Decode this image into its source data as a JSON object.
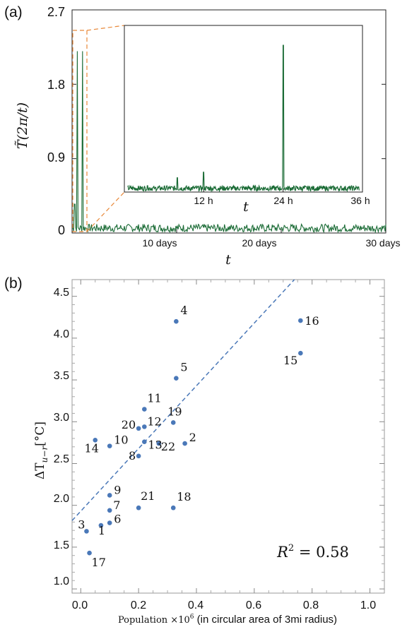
{
  "chart_data": [
    {
      "panel_label": "(a)",
      "type": "line",
      "ylabel": "T̃(2π/t)",
      "xlabel": "t",
      "y_ticks": [
        "2.7",
        "1.8",
        "0.9",
        "0"
      ],
      "x_ticks": [
        "10 days",
        "20 days",
        "30 days"
      ],
      "ylim": [
        0,
        2.7
      ],
      "xlim_days": [
        0,
        30
      ],
      "series_color": "#1a6b35",
      "spikes_days": [
        {
          "x": 0.5,
          "y": 2.2
        },
        {
          "x": 1.0,
          "y": 2.2
        },
        {
          "x": 0.25,
          "y": 0.35
        }
      ],
      "baseline_level": 0.06,
      "inset": {
        "xlabel": "t",
        "x_ticks": [
          "12 h",
          "24 h",
          "36 h"
        ],
        "xlim_hours": [
          0,
          36
        ],
        "spikes_hours": [
          {
            "x": 3.5,
            "y": 0.08
          },
          {
            "x": 4.6,
            "y": 0.05
          },
          {
            "x": 8.0,
            "y": 0.18
          },
          {
            "x": 12.0,
            "y": 0.25
          },
          {
            "x": 18.0,
            "y": 0.06
          },
          {
            "x": 24.0,
            "y": 1.85
          }
        ],
        "highlight_color": "#e8893a"
      }
    },
    {
      "panel_label": "(b)",
      "type": "scatter",
      "xlabel": "Population ×10",
      "xlabel_sup": "6",
      "xlabel_rest": " (in circular area of 3mi radius)",
      "ylabel": "ΔT",
      "ylabel_sub": "u−r",
      "ylabel_unit": "[°C]",
      "xlim": [
        -0.03,
        1.05
      ],
      "ylim": [
        0.95,
        4.7
      ],
      "x_ticks": [
        "0.0",
        "0.2",
        "0.4",
        "0.6",
        "0.8",
        "1.0"
      ],
      "y_ticks": [
        "1.0",
        "1.5",
        "2.0",
        "2.5",
        "3.0",
        "3.5",
        "4.0",
        "4.5"
      ],
      "annotation": "R",
      "annotation_sup": "2",
      "annotation_rest": " = 0.58",
      "point_color": "#4a78b8",
      "fit_line": {
        "slope": 3.75,
        "intercept": 1.93
      },
      "points": [
        {
          "label": "1",
          "x": 0.07,
          "y": 1.76
        },
        {
          "label": "2",
          "x": 0.36,
          "y": 2.74
        },
        {
          "label": "3",
          "x": 0.02,
          "y": 1.69
        },
        {
          "label": "4",
          "x": 0.33,
          "y": 4.2
        },
        {
          "label": "5",
          "x": 0.33,
          "y": 3.52
        },
        {
          "label": "6",
          "x": 0.1,
          "y": 1.79
        },
        {
          "label": "7",
          "x": 0.1,
          "y": 1.94
        },
        {
          "label": "8",
          "x": 0.2,
          "y": 2.59
        },
        {
          "label": "9",
          "x": 0.1,
          "y": 2.12
        },
        {
          "label": "10",
          "x": 0.1,
          "y": 2.71
        },
        {
          "label": "11",
          "x": 0.22,
          "y": 3.15
        },
        {
          "label": "12",
          "x": 0.22,
          "y": 2.94
        },
        {
          "label": "13",
          "x": 0.22,
          "y": 2.76
        },
        {
          "label": "14",
          "x": 0.05,
          "y": 2.78
        },
        {
          "label": "15",
          "x": 0.76,
          "y": 3.82
        },
        {
          "label": "16",
          "x": 0.76,
          "y": 4.21
        },
        {
          "label": "17",
          "x": 0.03,
          "y": 1.43
        },
        {
          "label": "18",
          "x": 0.32,
          "y": 1.97
        },
        {
          "label": "19",
          "x": 0.32,
          "y": 2.99
        },
        {
          "label": "20",
          "x": 0.2,
          "y": 2.92
        },
        {
          "label": "21",
          "x": 0.2,
          "y": 1.97
        },
        {
          "label": "22",
          "x": 0.27,
          "y": 2.74
        }
      ]
    }
  ]
}
